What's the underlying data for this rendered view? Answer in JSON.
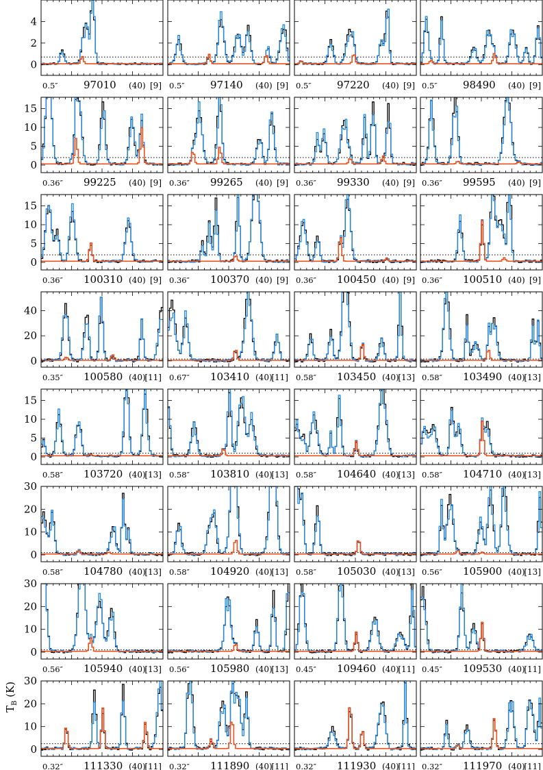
{
  "figure": {
    "y_axis_label": "T",
    "y_axis_label_sub": "B",
    "y_axis_label_unit": " (K)"
  },
  "chart_data": {
    "type": "line",
    "colors": {
      "observed": "#000000",
      "model_total": "#1e88e5",
      "model_species": "#e8501e",
      "threshold": "#000000"
    },
    "rows": [
      {
        "ylim": [
          -1,
          6
        ],
        "yticks": [
          0,
          2,
          4
        ],
        "threshold": 0.7,
        "panels": [
          {
            "res": "0.5″",
            "freq": "97010",
            "width": "(40)",
            "ref": "[9]",
            "lines": [
              {
                "x": 0.33,
                "h": 1.3
              }
            ]
          },
          {
            "res": "0.5″",
            "freq": "97140",
            "width": "(40)",
            "ref": "[9]",
            "lines": [
              {
                "x": 0.33,
                "h": 1.7
              },
              {
                "x": 0.8,
                "h": 1.6
              }
            ]
          },
          {
            "res": "0.5″",
            "freq": "97220",
            "width": "(40)",
            "ref": "[9]",
            "lines": [
              {
                "x": 0.05,
                "h": 0.5
              },
              {
                "x": 0.48,
                "h": 1.8
              }
            ]
          },
          {
            "res": "0.5″",
            "freq": "98490",
            "width": "(40)",
            "ref": "[9]",
            "lines": [
              {
                "x": 0.08,
                "h": 0.6
              },
              {
                "x": 0.6,
                "h": 1.8
              }
            ]
          }
        ]
      },
      {
        "ylim": [
          -2,
          18
        ],
        "yticks": [
          0,
          5,
          10,
          15
        ],
        "threshold": 2.0,
        "panels": [
          {
            "res": "0.36″",
            "freq": "99225",
            "width": "(40)",
            "ref": "[9]",
            "lines": [
              {
                "x": 0.28,
                "h": 9.0
              },
              {
                "x": 0.82,
                "h": 12.5
              }
            ]
          },
          {
            "res": "0.36″",
            "freq": "99265",
            "width": "(40)",
            "ref": "[9]",
            "lines": [
              {
                "x": 0.2,
                "h": 4.5
              },
              {
                "x": 0.42,
                "h": 6.0
              }
            ]
          },
          {
            "res": "0.36″",
            "freq": "99330",
            "width": "(40)",
            "ref": "[9]",
            "lines": [
              {
                "x": 0.45,
                "h": 2.0
              },
              {
                "x": 0.72,
                "h": 2.8
              }
            ]
          },
          {
            "res": "0.36″",
            "freq": "99595",
            "width": "(40)",
            "ref": "[9]",
            "lines": [
              {
                "x": 0.3,
                "h": 1.0
              },
              {
                "x": 0.8,
                "h": 0.8
              }
            ]
          }
        ]
      },
      {
        "ylim": [
          -2,
          18
        ],
        "yticks": [
          0,
          5,
          10,
          15
        ],
        "threshold": 2.0,
        "panels": [
          {
            "res": "0.36″",
            "freq": "100310",
            "width": "(40)",
            "ref": "[9]",
            "lines": [
              {
                "x": 0.4,
                "h": 6.5
              }
            ]
          },
          {
            "res": "0.36″",
            "freq": "100370",
            "width": "(40)",
            "ref": "[9]",
            "lines": [
              {
                "x": 0.55,
                "h": 2.0
              }
            ]
          },
          {
            "res": "0.36″",
            "freq": "100450",
            "width": "(40)",
            "ref": "[9]",
            "lines": [
              {
                "x": 0.37,
                "h": 9.0
              },
              {
                "x": 0.75,
                "h": 1.0
              }
            ]
          },
          {
            "res": "0.36″",
            "freq": "100510",
            "width": "(40)",
            "ref": "[9]",
            "lines": [
              {
                "x": 0.5,
                "h": 14.0
              },
              {
                "x": 0.68,
                "h": 1.2
              }
            ]
          }
        ]
      },
      {
        "ylim": [
          -5,
          55
        ],
        "yticks": [
          0,
          20,
          40
        ],
        "threshold": 1.5,
        "panels": [
          {
            "res": "0.35″",
            "freq": "100580",
            "width": "(40)",
            "ref": "[11]",
            "lines": [
              {
                "x": 0.2,
                "h": 3.0
              },
              {
                "x": 0.58,
                "h": 5.0
              }
            ]
          },
          {
            "res": "0.67″",
            "freq": "103410",
            "width": "(40)",
            "ref": "[11]",
            "lines": [
              {
                "x": 0.55,
                "h": 10.0
              }
            ]
          },
          {
            "res": "0.58″",
            "freq": "103450",
            "width": "(40)",
            "ref": "[13]",
            "lines": [
              {
                "x": 0.55,
                "h": 16.0
              }
            ]
          },
          {
            "res": "0.58″",
            "freq": "103490",
            "width": "(40)",
            "ref": "[13]",
            "lines": [
              {
                "x": 0.55,
                "h": 10.0
              }
            ]
          }
        ]
      },
      {
        "ylim": [
          -2,
          18
        ],
        "yticks": [
          0,
          5,
          10,
          15
        ],
        "threshold": 1.0,
        "panels": [
          {
            "res": "0.58″",
            "freq": "103720",
            "width": "(40)",
            "ref": "[13]",
            "lines": [
              {
                "x": 0.4,
                "h": 0.6
              }
            ]
          },
          {
            "res": "0.58″",
            "freq": "103810",
            "width": "(40)",
            "ref": "[13]",
            "lines": [
              {
                "x": 0.45,
                "h": 2.5
              }
            ]
          },
          {
            "res": "0.58″",
            "freq": "104640",
            "width": "(40)",
            "ref": "[13]",
            "lines": [
              {
                "x": 0.5,
                "h": 5.0
              }
            ]
          },
          {
            "res": "0.58″",
            "freq": "104710",
            "width": "(40)",
            "ref": "[13]",
            "lines": [
              {
                "x": 0.5,
                "h": 12.0
              }
            ]
          }
        ]
      },
      {
        "ylim": [
          -3,
          30
        ],
        "yticks": [
          0,
          10,
          20,
          30
        ],
        "threshold": 1.0,
        "panels": [
          {
            "res": "0.58″",
            "freq": "104780",
            "width": "(40)",
            "ref": "[13]",
            "lines": [
              {
                "x": 0.3,
                "h": 2.0
              },
              {
                "x": 0.55,
                "h": 1.0
              }
            ]
          },
          {
            "res": "0.58″",
            "freq": "104920",
            "width": "(40)",
            "ref": "[13]",
            "lines": [
              {
                "x": 0.55,
                "h": 8.0
              }
            ]
          },
          {
            "res": "0.58″",
            "freq": "105030",
            "width": "(40)",
            "ref": "[13]",
            "lines": [
              {
                "x": 0.52,
                "h": 8.0
              }
            ]
          },
          {
            "res": "0.56″",
            "freq": "105900",
            "width": "(40)",
            "ref": "[13]",
            "lines": [
              {
                "x": 0.3,
                "h": 2.0
              },
              {
                "x": 0.5,
                "h": 1.0
              }
            ]
          }
        ]
      },
      {
        "ylim": [
          -3,
          30
        ],
        "yticks": [
          0,
          10,
          20,
          30
        ],
        "threshold": 1.0,
        "panels": [
          {
            "res": "0.56″",
            "freq": "105940",
            "width": "(40)",
            "ref": "[13]",
            "lines": [
              {
                "x": 0.4,
                "h": 7.0
              }
            ]
          },
          {
            "res": "0.56″",
            "freq": "105980",
            "width": "(40)",
            "ref": "[13]",
            "lines": [
              {
                "x": 0.55,
                "h": 4.0
              }
            ]
          },
          {
            "res": "0.45″",
            "freq": "109460",
            "width": "(40)",
            "ref": "[11]",
            "lines": [
              {
                "x": 0.5,
                "h": 10.0
              }
            ]
          },
          {
            "res": "0.45″",
            "freq": "109530",
            "width": "(40)",
            "ref": "[11]",
            "lines": [
              {
                "x": 0.5,
                "h": 15.0
              }
            ]
          }
        ]
      },
      {
        "ylim": [
          -3,
          30
        ],
        "yticks": [
          0,
          10,
          20,
          30
        ],
        "threshold": 2.5,
        "panels": [
          {
            "res": "0.32″",
            "freq": "111330",
            "width": "(40)",
            "ref": "[11]",
            "lines": [
              {
                "x": 0.2,
                "h": 12.0
              },
              {
                "x": 0.5,
                "h": 21.0
              },
              {
                "x": 0.85,
                "h": 14.0
              }
            ]
          },
          {
            "res": "0.32″",
            "freq": "111890",
            "width": "(40)",
            "ref": "[11]",
            "lines": [
              {
                "x": 0.35,
                "h": 5.0
              },
              {
                "x": 0.52,
                "h": 16.0
              }
            ]
          },
          {
            "res": "0.32″",
            "freq": "111930",
            "width": "(40)",
            "ref": "[11]",
            "lines": [
              {
                "x": 0.45,
                "h": 24.0
              },
              {
                "x": 0.55,
                "h": 10.0
              }
            ]
          },
          {
            "res": "0.32″",
            "freq": "111970",
            "width": "(40)",
            "ref": "[11]",
            "lines": [
              {
                "x": 0.3,
                "h": 2.0
              },
              {
                "x": 0.6,
                "h": 16.0
              }
            ]
          }
        ]
      }
    ]
  }
}
